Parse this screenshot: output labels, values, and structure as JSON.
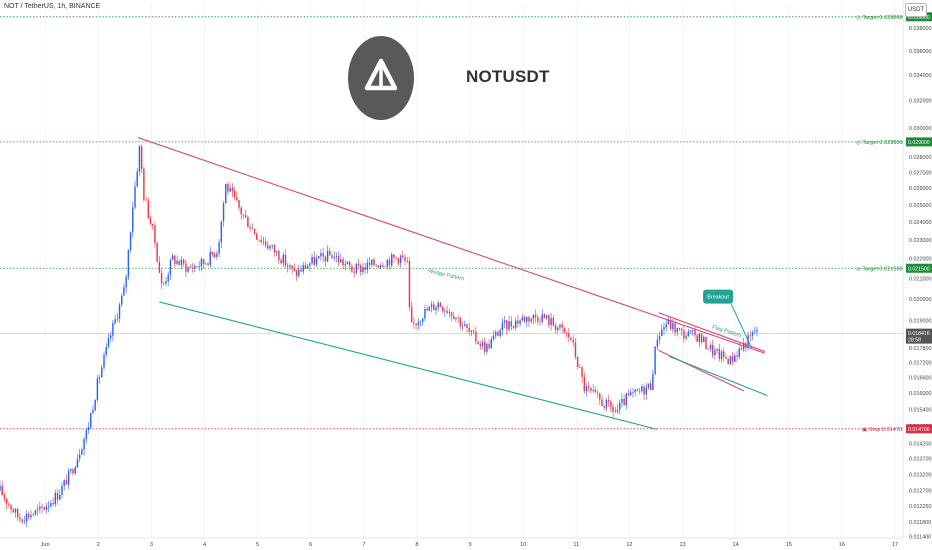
{
  "header": {
    "symbol_line": "NOT / TetherUS, 1h, BINANCE",
    "currency": "USDT"
  },
  "logo": {
    "name": "not-coin-logo",
    "label": "NOTUSDT",
    "bg": "#595959"
  },
  "chart_data": {
    "type": "candlestick",
    "x_labels": [
      {
        "label": "Jun",
        "x": 1
      },
      {
        "label": "2",
        "x": 2
      },
      {
        "label": "3",
        "x": 3
      },
      {
        "label": "4",
        "x": 4
      },
      {
        "label": "5",
        "x": 5
      },
      {
        "label": "6",
        "x": 6
      },
      {
        "label": "7",
        "x": 7
      },
      {
        "label": "8",
        "x": 8
      },
      {
        "label": "9",
        "x": 9
      },
      {
        "label": "10",
        "x": 10
      },
      {
        "label": "11",
        "x": 11
      },
      {
        "label": "12",
        "x": 12
      },
      {
        "label": "13",
        "x": 13
      },
      {
        "label": "14",
        "x": 14
      },
      {
        "label": "15",
        "x": 15
      },
      {
        "label": "16",
        "x": 16
      },
      {
        "label": "17",
        "x": 17
      }
    ],
    "xlim": [
      0.15,
      17.15
    ],
    "ylim": [
      0.01135,
      0.0402
    ],
    "y_ticks": [
      "0.011400",
      "0.011800",
      "0.012250",
      "0.012700",
      "0.013200",
      "0.013700",
      "0.014200",
      "0.014800",
      "0.015400",
      "0.016000",
      "0.016600",
      "0.017200",
      "0.017800",
      "0.018400",
      "0.019000",
      "0.020000",
      "0.021000",
      "0.022000",
      "0.023000",
      "0.024000",
      "0.025000",
      "0.026000",
      "0.027000",
      "0.028000",
      "0.030000",
      "0.032000",
      "0.034000",
      "0.036000",
      "0.038000"
    ],
    "levels": [
      {
        "name": "target-3",
        "value": 0.039,
        "label": "Target 0.039000",
        "badge": "0.039000",
        "color": "#1e8c3a",
        "icon": "target"
      },
      {
        "name": "target-2",
        "value": 0.029,
        "label": "Target 0.029000",
        "badge": "0.029000",
        "color": "#1e8c3a",
        "icon": "target"
      },
      {
        "name": "target-1",
        "value": 0.0215,
        "label": "Target 0.021500",
        "badge": "0.021500",
        "color": "#1e8c3a",
        "icon": "target"
      },
      {
        "name": "stop",
        "value": 0.0147,
        "label": "Stop 0.014700",
        "badge": "0.014700",
        "color": "#d6304a",
        "icon": "stop"
      }
    ],
    "last_price": {
      "value": 0.018416,
      "label": "0.018416",
      "countdown": "28:58"
    },
    "lines": [
      {
        "name": "wedge-upper",
        "color": "#e0457b",
        "points": [
          [
            2.75,
            0.0293
          ],
          [
            14.55,
            0.01758
          ]
        ]
      },
      {
        "name": "wedge-lower",
        "color": "#23a392",
        "points": [
          [
            3.15,
            0.01985
          ],
          [
            12.52,
            0.01468
          ]
        ]
      },
      {
        "name": "flag-upper",
        "color": "#e0457b",
        "points": [
          [
            12.55,
            0.01935
          ],
          [
            14.55,
            0.01765
          ]
        ]
      },
      {
        "name": "flag-lower",
        "color": "#e0457b",
        "points": [
          [
            12.55,
            0.0177
          ],
          [
            14.15,
            0.01608
          ]
        ]
      },
      {
        "name": "flag-channel",
        "color": "#23a392",
        "points": [
          [
            12.75,
            0.01745
          ],
          [
            14.6,
            0.0159
          ]
        ]
      }
    ],
    "annotations": [
      {
        "name": "wedge-pattern-label",
        "text": "Wedge Pattern",
        "x": 8.2,
        "y": 0.0213,
        "color": "#23a392"
      },
      {
        "name": "flag-pattern-label",
        "text": "Flag Pattern",
        "x": 13.55,
        "y": 0.01865,
        "color": "#23a392"
      },
      {
        "name": "breakout-callout",
        "text": "Breakout",
        "x": 13.65,
        "y": 0.0201,
        "color": "#23a392"
      }
    ],
    "candle_colors": {
      "up": "#2962ff",
      "down": "#f23645"
    },
    "anchors": [
      [
        0.15,
        0.0127
      ],
      [
        0.5,
        0.0119
      ],
      [
        0.9,
        0.0121
      ],
      [
        1.25,
        0.0126
      ],
      [
        1.5,
        0.0133
      ],
      [
        1.8,
        0.0147
      ],
      [
        2.0,
        0.0165
      ],
      [
        2.25,
        0.0185
      ],
      [
        2.5,
        0.0205
      ],
      [
        2.65,
        0.025
      ],
      [
        2.78,
        0.0287
      ],
      [
        2.86,
        0.0255
      ],
      [
        3.05,
        0.0232
      ],
      [
        3.2,
        0.0205
      ],
      [
        3.4,
        0.022
      ],
      [
        3.7,
        0.0215
      ],
      [
        4.0,
        0.0218
      ],
      [
        4.25,
        0.0225
      ],
      [
        4.4,
        0.0262
      ],
      [
        4.7,
        0.0245
      ],
      [
        5.0,
        0.0232
      ],
      [
        5.4,
        0.0222
      ],
      [
        5.7,
        0.0212
      ],
      [
        6.0,
        0.0218
      ],
      [
        6.4,
        0.0222
      ],
      [
        6.8,
        0.0214
      ],
      [
        7.3,
        0.0218
      ],
      [
        7.7,
        0.0221
      ],
      [
        7.83,
        0.0216
      ],
      [
        7.87,
        0.0186
      ],
      [
        8.1,
        0.0193
      ],
      [
        8.4,
        0.0198
      ],
      [
        8.7,
        0.0193
      ],
      [
        9.0,
        0.0184
      ],
      [
        9.3,
        0.0178
      ],
      [
        9.6,
        0.0187
      ],
      [
        10.0,
        0.0191
      ],
      [
        10.35,
        0.0192
      ],
      [
        10.6,
        0.0188
      ],
      [
        10.9,
        0.0182
      ],
      [
        11.15,
        0.0162
      ],
      [
        11.45,
        0.0157
      ],
      [
        11.75,
        0.0153
      ],
      [
        11.95,
        0.0158
      ],
      [
        12.15,
        0.016
      ],
      [
        12.4,
        0.0163
      ],
      [
        12.52,
        0.0183
      ],
      [
        12.7,
        0.0189
      ],
      [
        13.0,
        0.0184
      ],
      [
        13.3,
        0.0183
      ],
      [
        13.6,
        0.0176
      ],
      [
        13.9,
        0.0173
      ],
      [
        14.1,
        0.0178
      ],
      [
        14.3,
        0.0183
      ],
      [
        14.42,
        0.0187
      ]
    ]
  }
}
